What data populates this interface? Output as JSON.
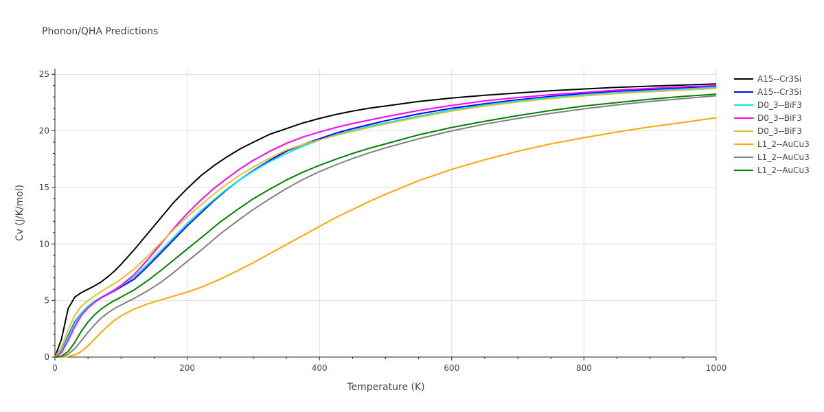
{
  "chart_data": {
    "type": "line",
    "title": "Phonon/QHA Predictions",
    "xlabel": "Temperature (K)",
    "ylabel": "Cv (J/K/mol)",
    "xlim": [
      0,
      1000
    ],
    "ylim": [
      0,
      25.5
    ],
    "x_ticks": [
      0,
      200,
      400,
      600,
      800,
      1000
    ],
    "y_ticks": [
      0,
      5,
      10,
      15,
      20,
      25
    ],
    "grid": true,
    "legend_position": "right",
    "series": [
      {
        "name": "A15--Cr3Si",
        "color": "#000000",
        "x": [
          0,
          10,
          20,
          30,
          40,
          50,
          60,
          70,
          80,
          90,
          100,
          120,
          140,
          160,
          180,
          200,
          220,
          240,
          260,
          280,
          300,
          325,
          350,
          375,
          400,
          425,
          450,
          475,
          500,
          550,
          600,
          650,
          700,
          750,
          800,
          850,
          900,
          950,
          1000
        ],
        "values": [
          0,
          1.6,
          4.3,
          5.3,
          5.7,
          6.0,
          6.3,
          6.65,
          7.1,
          7.6,
          8.2,
          9.5,
          10.9,
          12.3,
          13.7,
          14.9,
          16.0,
          16.9,
          17.7,
          18.4,
          19.0,
          19.7,
          20.2,
          20.7,
          21.1,
          21.45,
          21.75,
          22.0,
          22.2,
          22.6,
          22.9,
          23.15,
          23.35,
          23.55,
          23.7,
          23.85,
          23.95,
          24.05,
          24.15
        ]
      },
      {
        "name": "A15--Cr3Si",
        "color": "#0000ff",
        "x": [
          0,
          10,
          20,
          30,
          40,
          50,
          60,
          70,
          80,
          90,
          100,
          120,
          140,
          160,
          180,
          200,
          220,
          240,
          260,
          280,
          300,
          325,
          350,
          375,
          400,
          425,
          450,
          475,
          500,
          550,
          600,
          650,
          700,
          750,
          800,
          850,
          900,
          950,
          1000
        ],
        "values": [
          0,
          0.6,
          1.9,
          3.1,
          3.9,
          4.5,
          4.9,
          5.25,
          5.55,
          5.85,
          6.2,
          6.9,
          8.0,
          9.2,
          10.4,
          11.6,
          12.7,
          13.8,
          14.8,
          15.7,
          16.5,
          17.4,
          18.2,
          18.8,
          19.3,
          19.8,
          20.2,
          20.55,
          20.9,
          21.5,
          22.0,
          22.4,
          22.75,
          23.05,
          23.3,
          23.5,
          23.65,
          23.8,
          23.95
        ]
      },
      {
        "name": "D0_3--BiF3",
        "color": "#00e5ee",
        "x": [
          0,
          10,
          20,
          30,
          40,
          50,
          60,
          70,
          80,
          90,
          100,
          120,
          140,
          160,
          180,
          200,
          220,
          240,
          260,
          280,
          300,
          325,
          350,
          375,
          400,
          425,
          450,
          475,
          500,
          550,
          600,
          650,
          700,
          750,
          800,
          850,
          900,
          950,
          1000
        ],
        "values": [
          0,
          0.6,
          1.8,
          3.0,
          3.9,
          4.5,
          4.95,
          5.3,
          5.6,
          5.9,
          6.3,
          7.1,
          8.2,
          9.4,
          10.6,
          11.8,
          12.9,
          13.9,
          14.85,
          15.7,
          16.45,
          17.3,
          18.0,
          18.65,
          19.2,
          19.65,
          20.05,
          20.4,
          20.7,
          21.3,
          21.85,
          22.3,
          22.65,
          22.95,
          23.2,
          23.4,
          23.55,
          23.7,
          23.85
        ]
      },
      {
        "name": "D0_3--BiF3",
        "color": "#ff00ff",
        "x": [
          0,
          10,
          20,
          30,
          40,
          50,
          60,
          70,
          80,
          90,
          100,
          120,
          140,
          160,
          180,
          200,
          220,
          240,
          260,
          280,
          300,
          325,
          350,
          375,
          400,
          425,
          450,
          475,
          500,
          550,
          600,
          650,
          700,
          750,
          800,
          850,
          900,
          950,
          1000
        ],
        "values": [
          0,
          0.4,
          1.5,
          2.7,
          3.7,
          4.35,
          4.85,
          5.25,
          5.6,
          5.95,
          6.35,
          7.3,
          8.6,
          10.0,
          11.4,
          12.7,
          13.85,
          14.9,
          15.8,
          16.65,
          17.4,
          18.2,
          18.9,
          19.45,
          19.9,
          20.3,
          20.65,
          20.95,
          21.25,
          21.8,
          22.25,
          22.65,
          22.95,
          23.2,
          23.4,
          23.6,
          23.75,
          23.9,
          24.0
        ]
      },
      {
        "name": "D0_3--BiF3",
        "color": "#e3c02b",
        "x": [
          0,
          10,
          20,
          30,
          40,
          50,
          60,
          70,
          80,
          90,
          100,
          120,
          140,
          160,
          180,
          200,
          220,
          240,
          260,
          280,
          300,
          325,
          350,
          375,
          400,
          425,
          450,
          475,
          500,
          550,
          600,
          650,
          700,
          750,
          800,
          850,
          900,
          950,
          1000
        ],
        "values": [
          0,
          0.9,
          2.4,
          3.7,
          4.5,
          5.0,
          5.4,
          5.8,
          6.15,
          6.5,
          6.9,
          7.8,
          8.9,
          10.1,
          11.3,
          12.4,
          13.4,
          14.4,
          15.3,
          16.1,
          16.8,
          17.6,
          18.3,
          18.8,
          19.2,
          19.6,
          19.95,
          20.3,
          20.6,
          21.2,
          21.75,
          22.2,
          22.55,
          22.85,
          23.1,
          23.3,
          23.45,
          23.6,
          23.75
        ]
      },
      {
        "name": "L1_2--AuCu3",
        "color": "#ffa500",
        "x": [
          0,
          10,
          20,
          30,
          40,
          50,
          60,
          70,
          80,
          90,
          100,
          120,
          140,
          160,
          180,
          200,
          220,
          250,
          275,
          300,
          325,
          350,
          375,
          400,
          425,
          450,
          475,
          500,
          550,
          600,
          650,
          700,
          750,
          800,
          850,
          900,
          950,
          1000
        ],
        "values": [
          0,
          0.0,
          0.05,
          0.2,
          0.5,
          1.0,
          1.6,
          2.2,
          2.75,
          3.25,
          3.65,
          4.25,
          4.7,
          5.05,
          5.4,
          5.75,
          6.15,
          6.9,
          7.6,
          8.35,
          9.15,
          9.95,
          10.75,
          11.55,
          12.35,
          13.05,
          13.75,
          14.4,
          15.6,
          16.6,
          17.45,
          18.2,
          18.85,
          19.4,
          19.9,
          20.35,
          20.75,
          21.15
        ]
      },
      {
        "name": "L1_2--AuCu3",
        "color": "#808080",
        "x": [
          0,
          10,
          20,
          30,
          40,
          50,
          60,
          70,
          80,
          90,
          100,
          120,
          140,
          160,
          180,
          200,
          220,
          250,
          275,
          300,
          325,
          350,
          375,
          400,
          425,
          450,
          475,
          500,
          550,
          600,
          650,
          700,
          750,
          800,
          850,
          900,
          950,
          1000
        ],
        "values": [
          0,
          0.05,
          0.25,
          0.75,
          1.45,
          2.2,
          2.85,
          3.45,
          3.9,
          4.3,
          4.6,
          5.2,
          5.85,
          6.6,
          7.5,
          8.45,
          9.4,
          10.9,
          12.0,
          13.05,
          14.0,
          14.9,
          15.7,
          16.4,
          17.0,
          17.55,
          18.05,
          18.5,
          19.3,
          20.0,
          20.6,
          21.1,
          21.55,
          21.95,
          22.3,
          22.6,
          22.85,
          23.1
        ]
      },
      {
        "name": "L1_2--AuCu3",
        "color": "#008000",
        "x": [
          0,
          10,
          20,
          30,
          40,
          50,
          60,
          70,
          80,
          90,
          100,
          120,
          140,
          160,
          180,
          200,
          220,
          250,
          275,
          300,
          325,
          350,
          375,
          400,
          425,
          450,
          475,
          500,
          550,
          600,
          650,
          700,
          750,
          800,
          850,
          900,
          950,
          1000
        ],
        "values": [
          0,
          0.1,
          0.5,
          1.3,
          2.3,
          3.1,
          3.75,
          4.25,
          4.65,
          5.0,
          5.3,
          5.95,
          6.75,
          7.65,
          8.6,
          9.55,
          10.5,
          11.95,
          13.0,
          14.0,
          14.85,
          15.65,
          16.35,
          16.95,
          17.5,
          18.0,
          18.45,
          18.85,
          19.65,
          20.3,
          20.85,
          21.35,
          21.8,
          22.2,
          22.5,
          22.8,
          23.05,
          23.25
        ]
      }
    ]
  }
}
